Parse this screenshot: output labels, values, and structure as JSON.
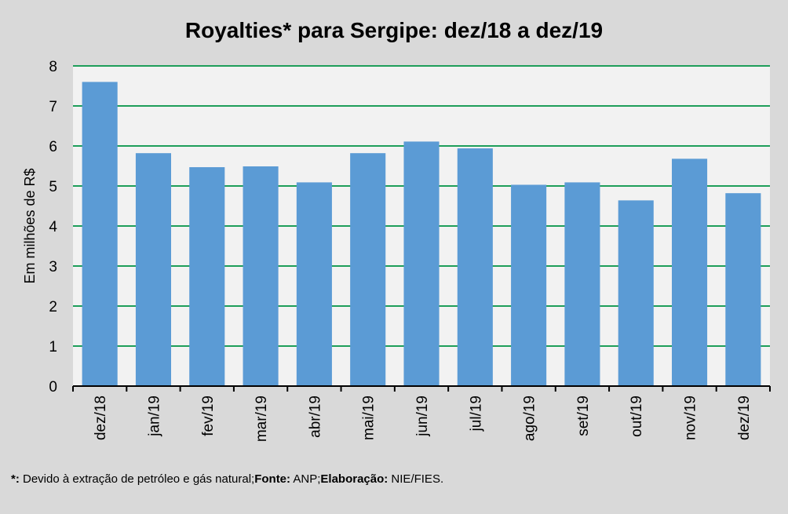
{
  "chart_data": {
    "type": "bar",
    "title": "Royalties* para Sergipe: dez/18 a dez/19",
    "xlabel": "",
    "ylabel": "Em milhões de R$",
    "ylim": [
      0,
      8
    ],
    "yticks": [
      "0",
      "1",
      "2",
      "3",
      "4",
      "5",
      "6",
      "7",
      "8"
    ],
    "grid": true,
    "categories": [
      "dez/18",
      "jan/19",
      "fev/19",
      "mar/19",
      "abr/19",
      "mai/19",
      "jun/19",
      "jul/19",
      "ago/19",
      "set/19",
      "out/19",
      "nov/19",
      "dez/19"
    ],
    "values": [
      7.6,
      5.82,
      5.47,
      5.49,
      5.09,
      5.82,
      6.11,
      5.94,
      5.03,
      5.09,
      4.64,
      5.68,
      4.82
    ],
    "colors": {
      "bar": "#5b9bd5",
      "grid": "#1e9e5a",
      "plot_bg": "#f2f2f2",
      "page_bg": "#d9d9d9"
    }
  },
  "footnote": {
    "marker": "*:",
    "text1": " Devido à extração de petróleo e gás natural;",
    "source_label": "Fonte:",
    "source_value": " ANP;",
    "elab_label": "Elaboração:",
    "elab_value": " NIE/FIES."
  }
}
